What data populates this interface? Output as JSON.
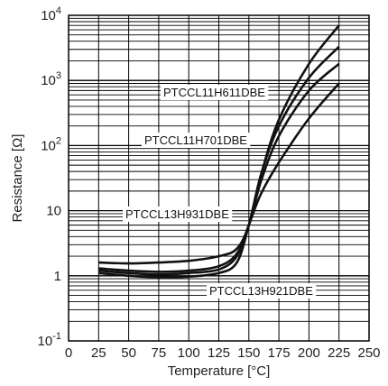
{
  "chart_data": {
    "type": "line",
    "xlabel": "Temperature [°C]",
    "ylabel": "Resistance [Ω]",
    "x_scale": "linear",
    "y_scale": "log",
    "xlim": [
      0,
      250
    ],
    "ylim": [
      0.1,
      10000
    ],
    "grid": true,
    "x_ticks": [
      "0",
      "25",
      "50",
      "75",
      "100",
      "125",
      "150",
      "175",
      "200",
      "225",
      "250"
    ],
    "y_ticks": [
      {
        "base": "10",
        "exp": "-1"
      },
      {
        "base": "1",
        "exp": ""
      },
      {
        "base": "10",
        "exp": ""
      },
      {
        "base": "10",
        "exp": "2"
      },
      {
        "base": "10",
        "exp": "3"
      },
      {
        "base": "10",
        "exp": "4"
      }
    ],
    "series": [
      {
        "name": "PTCCL11H611DBE",
        "x": [
          25,
          50,
          75,
          100,
          125,
          140,
          150,
          160,
          175,
          200,
          225
        ],
        "y": [
          1.1,
          1.0,
          0.95,
          0.97,
          1.1,
          1.6,
          6,
          35,
          250,
          1800,
          7000
        ]
      },
      {
        "name": "PTCCL11H701DBE",
        "x": [
          25,
          50,
          75,
          100,
          125,
          140,
          150,
          160,
          175,
          200,
          225
        ],
        "y": [
          1.3,
          1.2,
          1.15,
          1.2,
          1.4,
          2.2,
          6,
          35,
          200,
          1100,
          3300
        ]
      },
      {
        "name": "PTCCL13H931DBE",
        "x": [
          25,
          50,
          75,
          100,
          125,
          140,
          150,
          160,
          175,
          200,
          225
        ],
        "y": [
          1.6,
          1.55,
          1.6,
          1.7,
          2.0,
          2.6,
          6,
          28,
          140,
          700,
          1800
        ]
      },
      {
        "name": "PTCCL13H921DBE",
        "x": [
          25,
          50,
          75,
          100,
          125,
          140,
          150,
          160,
          175,
          200,
          225
        ],
        "y": [
          1.2,
          1.1,
          1.05,
          1.1,
          1.25,
          2.0,
          6,
          18,
          55,
          260,
          900
        ]
      }
    ]
  }
}
